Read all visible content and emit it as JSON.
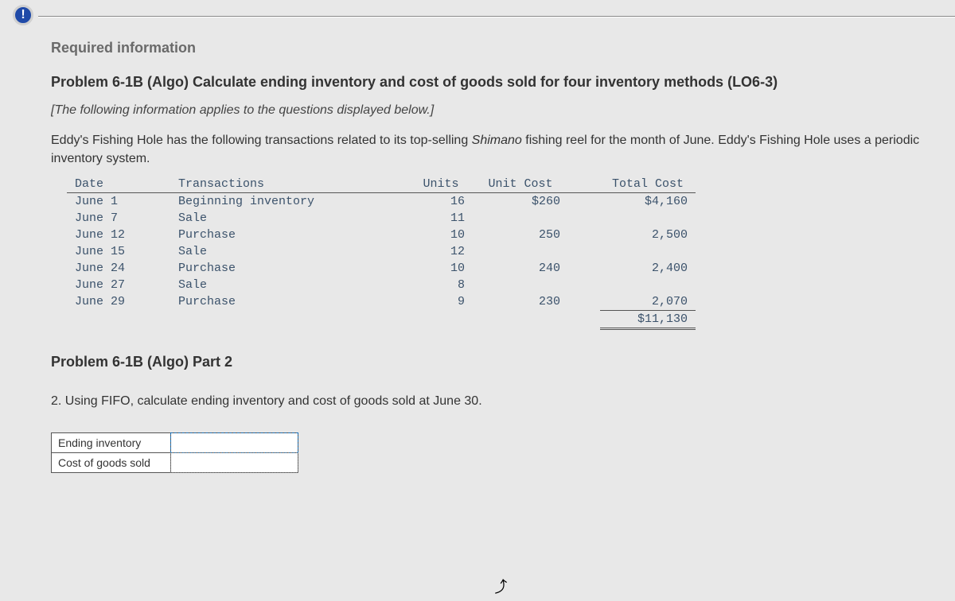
{
  "badge_text": "!",
  "header": {
    "required_info": "Required information",
    "problem_title": "Problem 6-1B (Algo) Calculate ending inventory and cost of goods sold for four inventory methods (LO6-3)",
    "note": "[The following information applies to the questions displayed below.]",
    "paragraph_prefix": "Eddy's Fishing Hole has the following transactions related to its top-selling ",
    "paragraph_italic": "Shimano",
    "paragraph_suffix": " fishing reel for the month of June. Eddy's Fishing Hole uses a periodic inventory system."
  },
  "table": {
    "columns": {
      "date": "Date",
      "transactions": "Transactions",
      "units": "Units",
      "unit_cost": "Unit Cost",
      "total_cost": "Total Cost"
    },
    "rows": [
      {
        "date": "June 1",
        "trans": "Beginning inventory",
        "units": "16",
        "unit_cost": "$260",
        "total_cost": "$4,160"
      },
      {
        "date": "June 7",
        "trans": "Sale",
        "units": "11",
        "unit_cost": "",
        "total_cost": ""
      },
      {
        "date": "June 12",
        "trans": "Purchase",
        "units": "10",
        "unit_cost": "250",
        "total_cost": "2,500"
      },
      {
        "date": "June 15",
        "trans": "Sale",
        "units": "12",
        "unit_cost": "",
        "total_cost": ""
      },
      {
        "date": "June 24",
        "trans": "Purchase",
        "units": "10",
        "unit_cost": "240",
        "total_cost": "2,400"
      },
      {
        "date": "June 27",
        "trans": "Sale",
        "units": "8",
        "unit_cost": "",
        "total_cost": ""
      },
      {
        "date": "June 29",
        "trans": "Purchase",
        "units": "9",
        "unit_cost": "230",
        "total_cost": "2,070"
      }
    ],
    "total_cost_sum": "$11,130"
  },
  "part2": {
    "title": "Problem 6-1B (Algo) Part 2",
    "question": "2. Using FIFO, calculate ending inventory and cost of goods sold at June 30."
  },
  "answer_table": {
    "row1_label": "Ending inventory",
    "row2_label": "Cost of goods sold",
    "row1_value": "",
    "row2_value": ""
  },
  "colors": {
    "page_bg": "#e8e8e8",
    "badge_bg": "#1f4aa8",
    "text_main": "#333333",
    "text_muted": "#6a6a6a",
    "mono_text": "#3b526b",
    "border": "#555555",
    "input_outline": "#1a6fb5"
  }
}
